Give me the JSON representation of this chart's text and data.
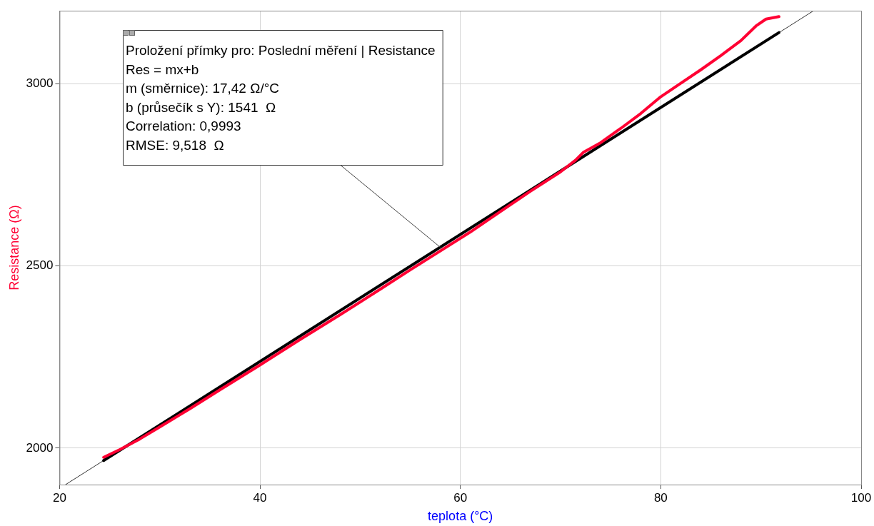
{
  "chart_data": {
    "type": "line",
    "xlabel": "teplota (°C)",
    "ylabel": "Resistance (Ω)",
    "xlim": [
      20,
      100
    ],
    "xticks": [
      20,
      40,
      60,
      80,
      100
    ],
    "ylim": [
      1900,
      3200
    ],
    "yticks": [
      2000,
      2500,
      3000
    ],
    "grid": true,
    "legend": false,
    "marker": "none",
    "line_style": "solid",
    "series": [
      {
        "color": "#ff0033",
        "x": [
          24.4,
          26,
          28,
          30,
          33,
          36,
          40,
          44,
          48,
          52,
          55,
          58,
          61,
          64,
          67,
          70,
          71.5,
          72.3,
          74,
          76,
          78,
          80,
          82,
          84,
          86,
          88,
          89.5,
          90.5,
          91.8
        ],
        "values": [
          1975,
          1996,
          2025,
          2058,
          2108,
          2160,
          2228,
          2298,
          2366,
          2436,
          2489,
          2541,
          2593,
          2649,
          2705,
          2758,
          2790,
          2812,
          2838,
          2877,
          2918,
          2964,
          3001,
          3038,
          3077,
          3118,
          3158,
          3177,
          3184
        ]
      },
      {
        "color": "#000000",
        "x": [
          24.4,
          91.8
        ],
        "values": [
          1966,
          3140
        ]
      },
      {
        "color": "#333333",
        "x": [
          20.6,
          95.2
        ],
        "values": [
          1900,
          3199
        ]
      }
    ],
    "annotations": [
      {
        "text": "Proložení přímky pro: Poslední měření | Resistance\nRes = mx+b\nm (směrnice): 17,42 Ω/°C\nb (průsečík s Y): 1541  Ω\nCorrelation: 0,9993\nRMSE: 9,518  Ω",
        "x": 58,
        "y": 2551
      }
    ]
  }
}
